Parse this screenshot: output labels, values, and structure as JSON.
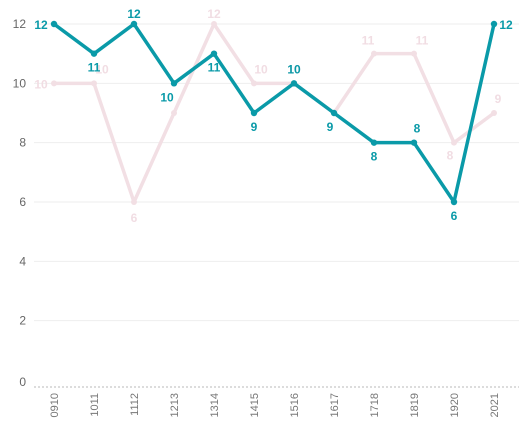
{
  "chart_data": {
    "type": "line",
    "title": "",
    "xlabel": "",
    "ylabel": "",
    "categories": [
      "0910",
      "1011",
      "1112",
      "1213",
      "1314",
      "1415",
      "1516",
      "1617",
      "1718",
      "1819",
      "1920",
      "2021"
    ],
    "ylim": [
      0,
      12
    ],
    "yticks": [
      "0",
      "2",
      "4",
      "6",
      "8",
      "10",
      "12"
    ],
    "grid": true,
    "series": [
      {
        "values": [
          10,
          10,
          6,
          9,
          12,
          10,
          10,
          9,
          11,
          11,
          8,
          9
        ],
        "color": "#f2dfe4",
        "labels": [
          "10",
          "10",
          "6",
          "",
          "12",
          "10",
          "10",
          "",
          "11",
          "11",
          "8",
          "9"
        ]
      },
      {
        "values": [
          12,
          11,
          12,
          10,
          11,
          9,
          10,
          9,
          8,
          8,
          6,
          12
        ],
        "color": "#0a9aa8",
        "labels": [
          "12",
          "11",
          "12",
          "10",
          "11",
          "9",
          "10",
          "9",
          "8",
          "8",
          "6",
          "12"
        ]
      }
    ]
  }
}
